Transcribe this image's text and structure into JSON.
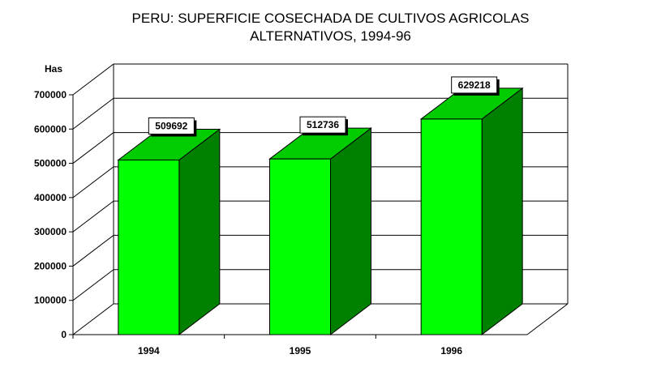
{
  "chart_data": {
    "type": "bar",
    "title_line1": "PERU: SUPERFICIE COSECHADA DE CULTIVOS AGRICOLAS",
    "title_line2": "ALTERNATIVOS, 1994-96",
    "ylabel": "Has",
    "xlabel": "",
    "categories": [
      "1994",
      "1995",
      "1996"
    ],
    "values": [
      509692,
      512736,
      629218
    ],
    "data_labels": [
      "509692",
      "512736",
      "629218"
    ],
    "ylim": [
      0,
      700000
    ],
    "yticks": [
      "0",
      "100000",
      "200000",
      "300000",
      "400000",
      "500000",
      "600000",
      "700000"
    ],
    "grid": true,
    "style": "3d-bar",
    "colors": {
      "bar_front": "#00ff00",
      "bar_top": "#00cc00",
      "bar_side": "#008000",
      "grid": "#000000"
    }
  }
}
